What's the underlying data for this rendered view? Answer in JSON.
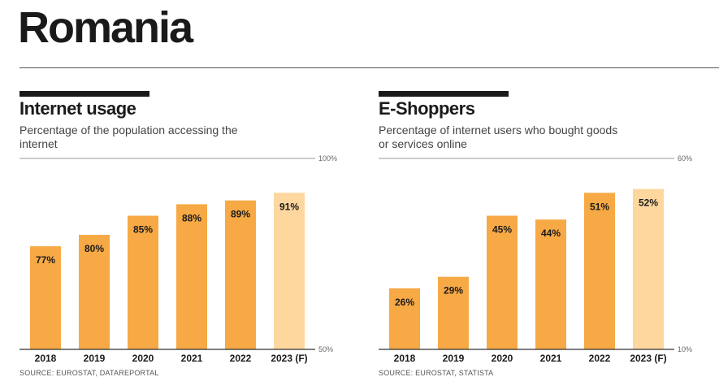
{
  "page": {
    "title": "Romania"
  },
  "chart_data": [
    {
      "type": "bar",
      "title": "Internet usage",
      "subtitle": "Percentage of the population accessing the internet",
      "categories": [
        "2018",
        "2019",
        "2020",
        "2021",
        "2022",
        "2023 (F)"
      ],
      "values": [
        77,
        80,
        85,
        88,
        89,
        91
      ],
      "value_labels": [
        "77%",
        "80%",
        "85%",
        "88%",
        "89%",
        "91%"
      ],
      "forecast": [
        false,
        false,
        false,
        false,
        false,
        true
      ],
      "ylim": [
        50,
        100
      ],
      "y_tick_labels": [
        "50%",
        "100%"
      ],
      "source": "SOURCE: EUROSTAT, DATAREPORTAL",
      "colors": {
        "bar": "#F7A945",
        "forecast": "#FDD79E"
      }
    },
    {
      "type": "bar",
      "title": "E-Shoppers",
      "subtitle": "Percentage of internet users who bought goods or services online",
      "categories": [
        "2018",
        "2019",
        "2020",
        "2021",
        "2022",
        "2023 (F)"
      ],
      "values": [
        26,
        29,
        45,
        44,
        51,
        52
      ],
      "value_labels": [
        "26%",
        "29%",
        "45%",
        "44%",
        "51%",
        "52%"
      ],
      "forecast": [
        false,
        false,
        false,
        false,
        false,
        true
      ],
      "ylim": [
        10,
        60
      ],
      "y_tick_labels": [
        "10%",
        "60%"
      ],
      "source": "SOURCE: EUROSTAT, STATISTA",
      "colors": {
        "bar": "#F7A945",
        "forecast": "#FDD79E"
      }
    }
  ]
}
